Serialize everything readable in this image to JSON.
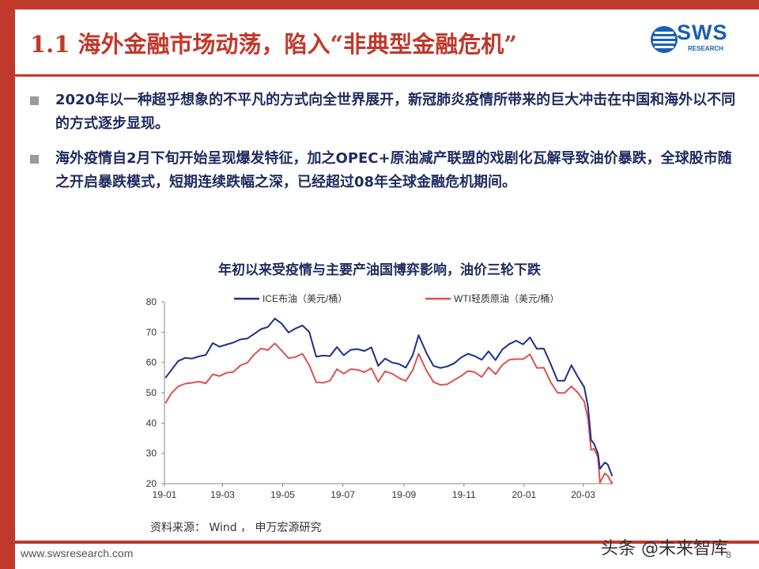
{
  "slide": {
    "title": "1.1 海外金融市场动荡，陷入“非典型金融危机”",
    "logo_text": "SWS",
    "logo_sub": "RESEARCH",
    "bullets": [
      "2020年以一种超乎想象的不平凡的方式向全世界展开，新冠肺炎疫情所带来的巨大冲击在中国和海外以不同的方式逐步显现。",
      "海外疫情自2月下旬开始呈现爆发特征，加之OPEC+原油减产联盟的戏剧化瓦解导致油价暴跌，全球股市随之开启暴跌模式，短期连续跌幅之深，已经超过08年全球金融危机期间。"
    ],
    "source": "资料来源： Wind ， 申万宏源研究",
    "footer_url": "www.swsresearch.com",
    "page_number": "8",
    "watermark": "头条 @未来智库"
  },
  "colors": {
    "accent_red": "#c0392b",
    "text_navy": "#1f2a5e",
    "brent": "#1f2f8a",
    "wti": "#d9534f",
    "logo_blue": "#1a5fb4"
  },
  "chart_data": {
    "type": "line",
    "title": "年初以来受疫情与主要产油国博弈影响，油价三轮下跌",
    "xlabel": "",
    "ylabel": "",
    "ylim": [
      20,
      80
    ],
    "yticks": [
      20,
      30,
      40,
      50,
      60,
      70,
      80
    ],
    "x_range": [
      "2019-01-01",
      "2020-03-31"
    ],
    "x_ticks": [
      {
        "date": "2019-01-01",
        "label": "19-01"
      },
      {
        "date": "2019-03-01",
        "label": "19-03"
      },
      {
        "date": "2019-05-01",
        "label": "19-05"
      },
      {
        "date": "2019-07-01",
        "label": "19-07"
      },
      {
        "date": "2019-09-01",
        "label": "19-09"
      },
      {
        "date": "2019-11-01",
        "label": "19-11"
      },
      {
        "date": "2020-01-01",
        "label": "20-01"
      },
      {
        "date": "2020-03-01",
        "label": "20-03"
      }
    ],
    "grid": false,
    "legend": "top",
    "series": [
      {
        "name": "ICE布油（美元/桶）",
        "color": "#1f2f8a",
        "points": [
          [
            "2019-01-02",
            54.9
          ],
          [
            "2019-01-08",
            57.5
          ],
          [
            "2019-01-15",
            60.5
          ],
          [
            "2019-01-22",
            61.5
          ],
          [
            "2019-01-29",
            61.3
          ],
          [
            "2019-02-05",
            62.0
          ],
          [
            "2019-02-12",
            62.5
          ],
          [
            "2019-02-19",
            66.4
          ],
          [
            "2019-02-26",
            65.2
          ],
          [
            "2019-03-05",
            65.9
          ],
          [
            "2019-03-12",
            66.6
          ],
          [
            "2019-03-19",
            67.6
          ],
          [
            "2019-03-26",
            67.9
          ],
          [
            "2019-04-02",
            69.4
          ],
          [
            "2019-04-09",
            71.0
          ],
          [
            "2019-04-16",
            71.7
          ],
          [
            "2019-04-23",
            74.5
          ],
          [
            "2019-04-30",
            72.8
          ],
          [
            "2019-05-07",
            69.9
          ],
          [
            "2019-05-14",
            71.2
          ],
          [
            "2019-05-21",
            72.2
          ],
          [
            "2019-05-28",
            70.1
          ],
          [
            "2019-06-04",
            61.9
          ],
          [
            "2019-06-11",
            62.3
          ],
          [
            "2019-06-18",
            62.1
          ],
          [
            "2019-06-25",
            65.1
          ],
          [
            "2019-07-02",
            62.4
          ],
          [
            "2019-07-09",
            64.2
          ],
          [
            "2019-07-16",
            64.4
          ],
          [
            "2019-07-23",
            63.8
          ],
          [
            "2019-07-30",
            65.0
          ],
          [
            "2019-08-06",
            58.9
          ],
          [
            "2019-08-13",
            61.3
          ],
          [
            "2019-08-20",
            60.0
          ],
          [
            "2019-08-27",
            59.5
          ],
          [
            "2019-09-03",
            58.3
          ],
          [
            "2019-09-10",
            62.4
          ],
          [
            "2019-09-16",
            69.0
          ],
          [
            "2019-09-24",
            63.1
          ],
          [
            "2019-10-01",
            58.9
          ],
          [
            "2019-10-08",
            58.2
          ],
          [
            "2019-10-15",
            58.7
          ],
          [
            "2019-10-22",
            59.7
          ],
          [
            "2019-10-29",
            61.6
          ],
          [
            "2019-11-05",
            62.9
          ],
          [
            "2019-11-12",
            62.1
          ],
          [
            "2019-11-19",
            60.9
          ],
          [
            "2019-11-26",
            63.7
          ],
          [
            "2019-12-03",
            60.8
          ],
          [
            "2019-12-10",
            64.3
          ],
          [
            "2019-12-17",
            66.1
          ],
          [
            "2019-12-24",
            67.2
          ],
          [
            "2019-12-31",
            66.0
          ],
          [
            "2020-01-07",
            68.3
          ],
          [
            "2020-01-14",
            64.5
          ],
          [
            "2020-01-21",
            64.6
          ],
          [
            "2020-01-28",
            59.5
          ],
          [
            "2020-02-04",
            54.0
          ],
          [
            "2020-02-11",
            54.0
          ],
          [
            "2020-02-18",
            59.1
          ],
          [
            "2020-02-25",
            55.0
          ],
          [
            "2020-03-02",
            51.9
          ],
          [
            "2020-03-06",
            45.3
          ],
          [
            "2020-03-09",
            34.4
          ],
          [
            "2020-03-12",
            33.2
          ],
          [
            "2020-03-16",
            30.0
          ],
          [
            "2020-03-18",
            24.9
          ],
          [
            "2020-03-23",
            27.0
          ],
          [
            "2020-03-26",
            26.3
          ],
          [
            "2020-03-30",
            22.8
          ],
          [
            "2020-03-31",
            22.7
          ]
        ]
      },
      {
        "name": "WTI轻质原油（美元/桶）",
        "color": "#d9534f",
        "points": [
          [
            "2019-01-02",
            46.5
          ],
          [
            "2019-01-08",
            49.8
          ],
          [
            "2019-01-15",
            52.1
          ],
          [
            "2019-01-22",
            53.0
          ],
          [
            "2019-01-29",
            53.3
          ],
          [
            "2019-02-05",
            53.7
          ],
          [
            "2019-02-12",
            53.1
          ],
          [
            "2019-02-19",
            56.1
          ],
          [
            "2019-02-26",
            55.5
          ],
          [
            "2019-03-05",
            56.6
          ],
          [
            "2019-03-12",
            56.9
          ],
          [
            "2019-03-19",
            59.0
          ],
          [
            "2019-03-26",
            59.9
          ],
          [
            "2019-04-02",
            62.6
          ],
          [
            "2019-04-09",
            64.6
          ],
          [
            "2019-04-16",
            64.1
          ],
          [
            "2019-04-23",
            66.3
          ],
          [
            "2019-04-30",
            63.9
          ],
          [
            "2019-05-07",
            61.4
          ],
          [
            "2019-05-14",
            61.8
          ],
          [
            "2019-05-21",
            62.9
          ],
          [
            "2019-05-28",
            59.1
          ],
          [
            "2019-06-04",
            53.5
          ],
          [
            "2019-06-11",
            53.3
          ],
          [
            "2019-06-18",
            54.0
          ],
          [
            "2019-06-25",
            57.8
          ],
          [
            "2019-07-02",
            56.3
          ],
          [
            "2019-07-09",
            57.8
          ],
          [
            "2019-07-16",
            57.6
          ],
          [
            "2019-07-23",
            56.8
          ],
          [
            "2019-07-30",
            58.1
          ],
          [
            "2019-08-06",
            53.6
          ],
          [
            "2019-08-13",
            57.1
          ],
          [
            "2019-08-20",
            56.3
          ],
          [
            "2019-08-27",
            54.9
          ],
          [
            "2019-09-03",
            53.9
          ],
          [
            "2019-09-10",
            57.4
          ],
          [
            "2019-09-16",
            62.9
          ],
          [
            "2019-09-24",
            57.3
          ],
          [
            "2019-10-01",
            53.6
          ],
          [
            "2019-10-08",
            52.6
          ],
          [
            "2019-10-15",
            52.8
          ],
          [
            "2019-10-22",
            54.2
          ],
          [
            "2019-10-29",
            55.5
          ],
          [
            "2019-11-05",
            57.2
          ],
          [
            "2019-11-12",
            56.8
          ],
          [
            "2019-11-19",
            55.2
          ],
          [
            "2019-11-26",
            58.4
          ],
          [
            "2019-12-03",
            56.1
          ],
          [
            "2019-12-10",
            59.2
          ],
          [
            "2019-12-17",
            60.9
          ],
          [
            "2019-12-24",
            61.1
          ],
          [
            "2019-12-31",
            61.1
          ],
          [
            "2020-01-07",
            62.7
          ],
          [
            "2020-01-14",
            58.2
          ],
          [
            "2020-01-21",
            58.3
          ],
          [
            "2020-01-28",
            53.5
          ],
          [
            "2020-02-04",
            50.0
          ],
          [
            "2020-02-11",
            49.9
          ],
          [
            "2020-02-18",
            52.1
          ],
          [
            "2020-02-25",
            49.9
          ],
          [
            "2020-03-02",
            47.1
          ],
          [
            "2020-03-06",
            41.3
          ],
          [
            "2020-03-09",
            31.1
          ],
          [
            "2020-03-12",
            31.5
          ],
          [
            "2020-03-16",
            28.7
          ],
          [
            "2020-03-18",
            20.4
          ],
          [
            "2020-03-23",
            23.4
          ],
          [
            "2020-03-26",
            22.6
          ],
          [
            "2020-03-30",
            20.1
          ],
          [
            "2020-03-31",
            20.5
          ]
        ]
      }
    ]
  }
}
